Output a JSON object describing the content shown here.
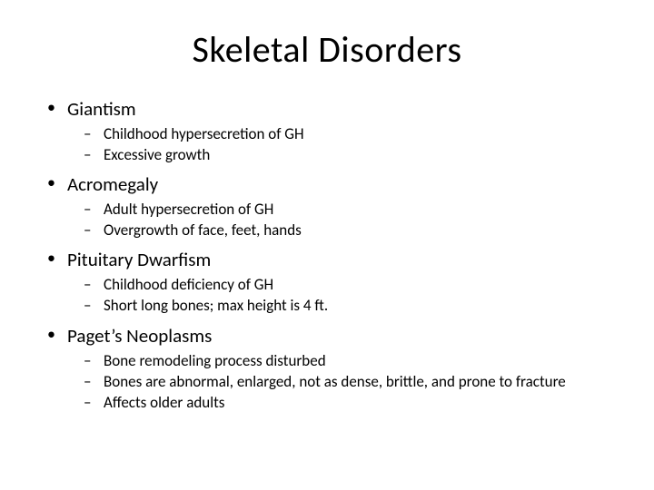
{
  "title": "Skeletal Disorders",
  "title_fontsize": 40,
  "level1_fontsize": 21,
  "level2_fontsize": 17,
  "text_color": "#000000",
  "background_color": "#ffffff",
  "bullet1_char": "•",
  "bullet2_char": "–",
  "items": [
    {
      "label": "Giantism",
      "sub": [
        "Childhood hypersecretion of GH",
        "Excessive growth"
      ]
    },
    {
      "label": "Acromegaly",
      "sub": [
        "Adult hypersecretion of GH",
        "Overgrowth of face, feet, hands"
      ]
    },
    {
      "label": "Pituitary Dwarfism",
      "sub": [
        "Childhood deficiency of GH",
        "Short long bones; max height is 4 ft."
      ]
    },
    {
      "label": "Paget’s Neoplasms",
      "sub": [
        "Bone remodeling process disturbed",
        "Bones are abnormal, enlarged, not as dense, brittle, and prone to fracture",
        "Affects older adults"
      ]
    }
  ]
}
